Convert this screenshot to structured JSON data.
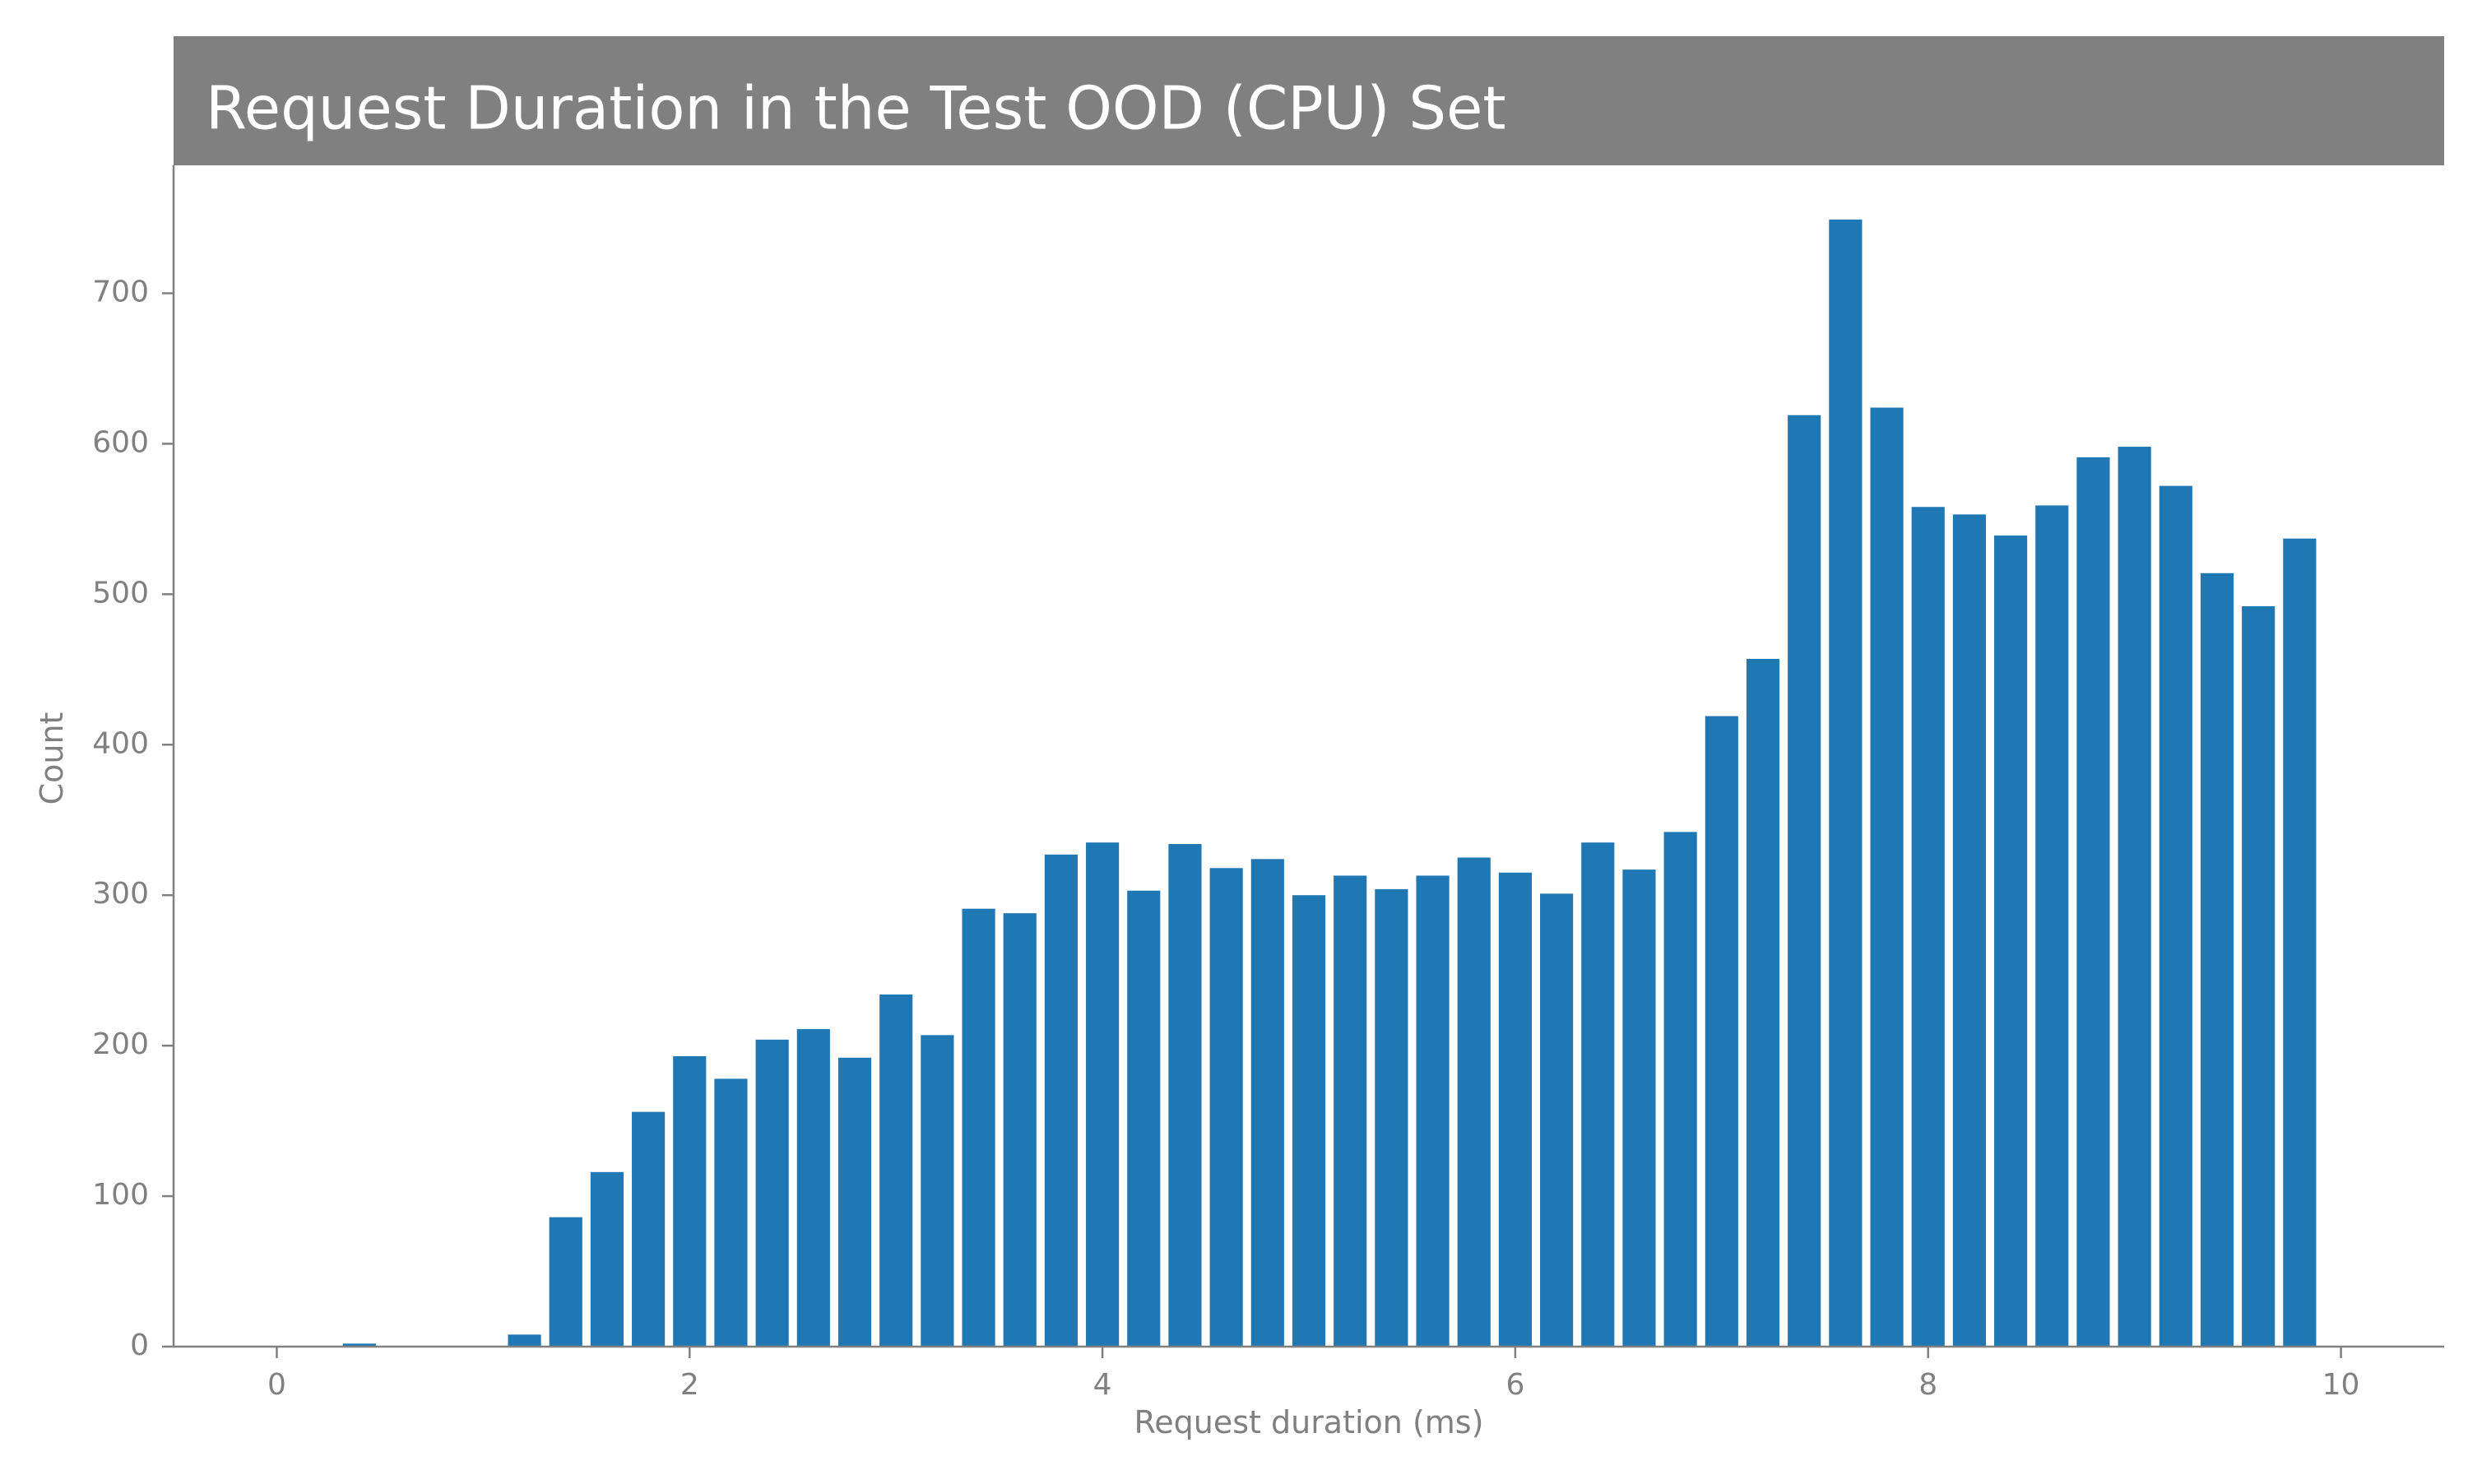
{
  "chart_data": {
    "type": "bar",
    "title": "Request Duration in the Test OOD (CPU) Set",
    "xlabel": "Request duration (ms)",
    "ylabel": "Count",
    "xlim": [
      -0.5,
      10.5
    ],
    "ylim": [
      0,
      785
    ],
    "xticks": [
      0,
      2,
      4,
      6,
      8,
      10
    ],
    "yticks": [
      0,
      100,
      200,
      300,
      400,
      500,
      600,
      700
    ],
    "grid": false,
    "legend": "none",
    "bin_width": 0.2,
    "bar_width_fraction": 0.8,
    "x": [
      0.0,
      0.2,
      0.4,
      0.6,
      0.8,
      1.0,
      1.2,
      1.4,
      1.6,
      1.8,
      2.0,
      2.2,
      2.4,
      2.6,
      2.8,
      3.0,
      3.2,
      3.4,
      3.6,
      3.8,
      4.0,
      4.2,
      4.4,
      4.6,
      4.8,
      5.0,
      5.2,
      5.4,
      5.6,
      5.8,
      6.0,
      6.2,
      6.4,
      6.6,
      6.8,
      7.0,
      7.2,
      7.4,
      7.6,
      7.8,
      8.0,
      8.2,
      8.4,
      8.6,
      8.8,
      9.0,
      9.2,
      9.4,
      9.6,
      9.8
    ],
    "values": [
      0,
      0,
      2,
      0,
      0,
      0,
      8,
      86,
      116,
      156,
      193,
      178,
      204,
      211,
      192,
      234,
      207,
      291,
      288,
      327,
      335,
      303,
      334,
      318,
      324,
      300,
      313,
      304,
      313,
      325,
      315,
      301,
      335,
      317,
      342,
      419,
      457,
      619,
      749,
      624,
      558,
      553,
      539,
      559,
      591,
      598,
      572,
      514,
      492,
      537
    ]
  },
  "colors": {
    "bar": "#1f77b4",
    "title_band": "#808080",
    "title_text": "#ffffff",
    "axis": "#808080",
    "tick_text": "#808080"
  }
}
